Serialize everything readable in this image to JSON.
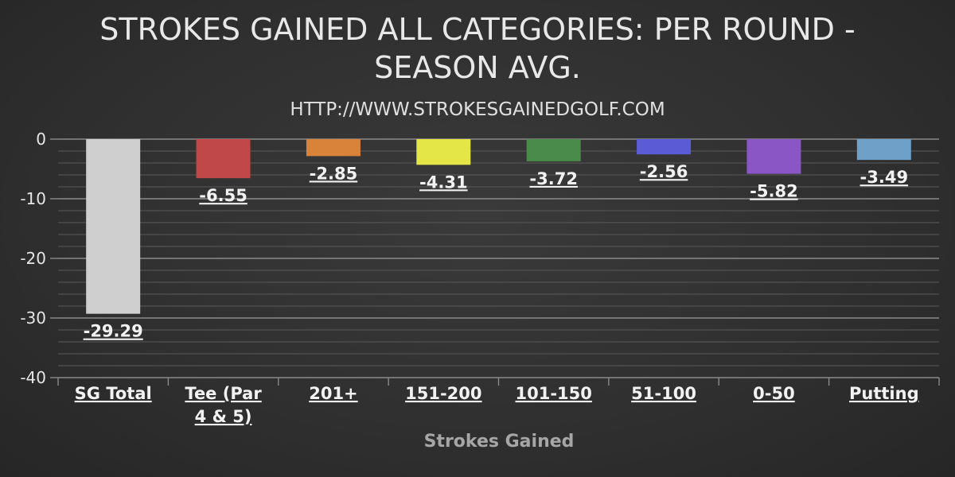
{
  "chart_data": {
    "type": "bar",
    "title_lines": [
      "STROKES GAINED ALL CATEGORIES: PER ROUND -",
      "SEASON AVG."
    ],
    "subtitle": "HTTP://WWW.STROKESGAINEDGOLF.COM",
    "xlabel": "Strokes Gained",
    "ylabel": "",
    "ylim": [
      -40,
      0
    ],
    "yticks": [
      "0",
      "-10",
      "-20",
      "-30",
      "-40"
    ],
    "grid": true,
    "categories": [
      {
        "lines": [
          "SG Total"
        ]
      },
      {
        "lines": [
          "Tee (Par",
          "4 & 5)"
        ]
      },
      {
        "lines": [
          "201+"
        ]
      },
      {
        "lines": [
          "151-200"
        ]
      },
      {
        "lines": [
          "101-150"
        ]
      },
      {
        "lines": [
          "51-100"
        ]
      },
      {
        "lines": [
          "0-50"
        ]
      },
      {
        "lines": [
          "Putting"
        ]
      }
    ],
    "values": [
      -29.29,
      -6.55,
      -2.85,
      -4.31,
      -3.72,
      -2.56,
      -5.82,
      -3.49
    ],
    "value_labels": [
      "-29.29",
      "-6.55",
      "-2.85",
      "-4.31",
      "-3.72",
      "-2.56",
      "-5.82",
      "-3.49"
    ],
    "colors": [
      "#cfcfcf",
      "#c04848",
      "#d9833a",
      "#e3e646",
      "#4a8a4a",
      "#5b5bd6",
      "#8a55c4",
      "#6fa0c8"
    ]
  }
}
